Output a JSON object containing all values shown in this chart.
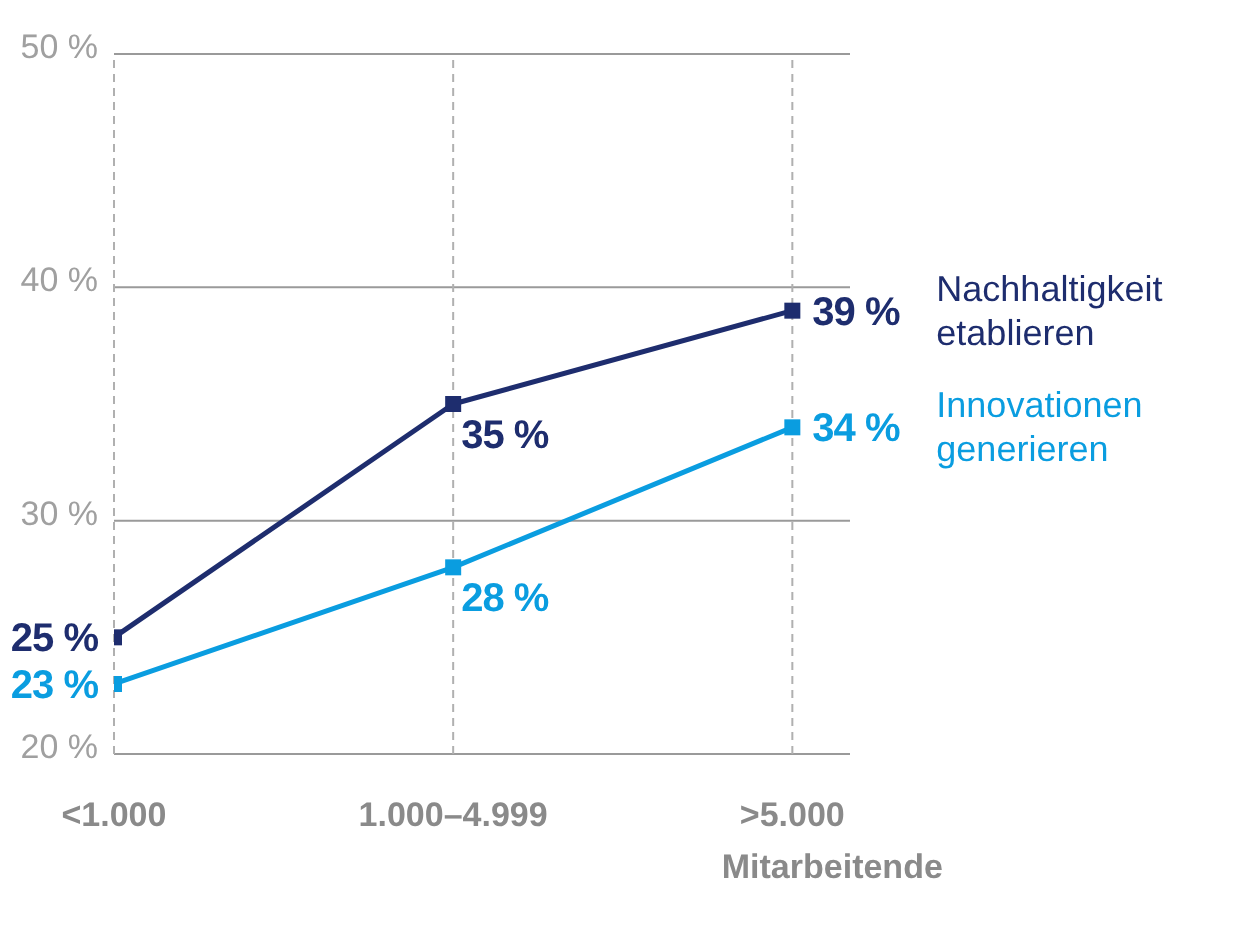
{
  "chart_data": {
    "type": "line",
    "categories": [
      "<1.000",
      "1.000–4.999",
      ">5.000"
    ],
    "xlabel": "Mitarbeitende",
    "ylim": [
      20,
      50
    ],
    "yticks": [
      {
        "value": 20,
        "label": "20 %"
      },
      {
        "value": 30,
        "label": "30 %"
      },
      {
        "value": 40,
        "label": "40 %"
      },
      {
        "value": 50,
        "label": "50 %"
      }
    ],
    "grid": true,
    "marker": "square",
    "line_style": "solid",
    "series": [
      {
        "name": "Nachhaltigkeit etablieren",
        "color": "#1e2d6e",
        "values": [
          25,
          35,
          39
        ],
        "value_labels": [
          "25 %",
          "35 %",
          "39 %"
        ]
      },
      {
        "name": "Innovationen generieren",
        "color": "#0a9de0",
        "values": [
          23,
          28,
          34
        ],
        "value_labels": [
          "23 %",
          "28 %",
          "34 %"
        ]
      }
    ]
  }
}
